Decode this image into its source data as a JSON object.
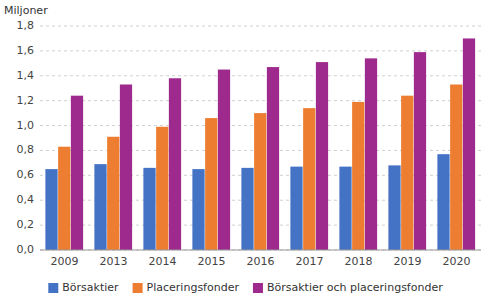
{
  "chart_data": {
    "type": "bar",
    "ylabel": "Miljoner",
    "categories": [
      "2009",
      "2013",
      "2014",
      "2015",
      "2016",
      "2017",
      "2018",
      "2019",
      "2020"
    ],
    "series": [
      {
        "name": "Börsaktier",
        "color": "#4472C4",
        "values": [
          0.65,
          0.69,
          0.66,
          0.65,
          0.66,
          0.67,
          0.67,
          0.68,
          0.77
        ]
      },
      {
        "name": "Placeringsfonder",
        "color": "#ED7D31",
        "values": [
          0.83,
          0.91,
          0.99,
          1.06,
          1.1,
          1.14,
          1.19,
          1.24,
          1.33
        ]
      },
      {
        "name": "Börsaktier och placeringsfonder",
        "color": "#9E2A8D",
        "values": [
          1.24,
          1.33,
          1.38,
          1.45,
          1.47,
          1.51,
          1.54,
          1.59,
          1.7
        ]
      }
    ],
    "ylim": [
      0,
      1.8
    ],
    "yticks": [
      {
        "value": 0.0,
        "label": "0,0"
      },
      {
        "value": 0.2,
        "label": "0,2"
      },
      {
        "value": 0.4,
        "label": "0,4"
      },
      {
        "value": 0.6,
        "label": "0,6"
      },
      {
        "value": 0.8,
        "label": "0,8"
      },
      {
        "value": 1.0,
        "label": "1,0"
      },
      {
        "value": 1.2,
        "label": "1,2"
      },
      {
        "value": 1.4,
        "label": "1,4"
      },
      {
        "value": 1.6,
        "label": "1,6"
      },
      {
        "value": 1.8,
        "label": "1,8"
      }
    ],
    "grid": true,
    "legend": "bottom"
  }
}
